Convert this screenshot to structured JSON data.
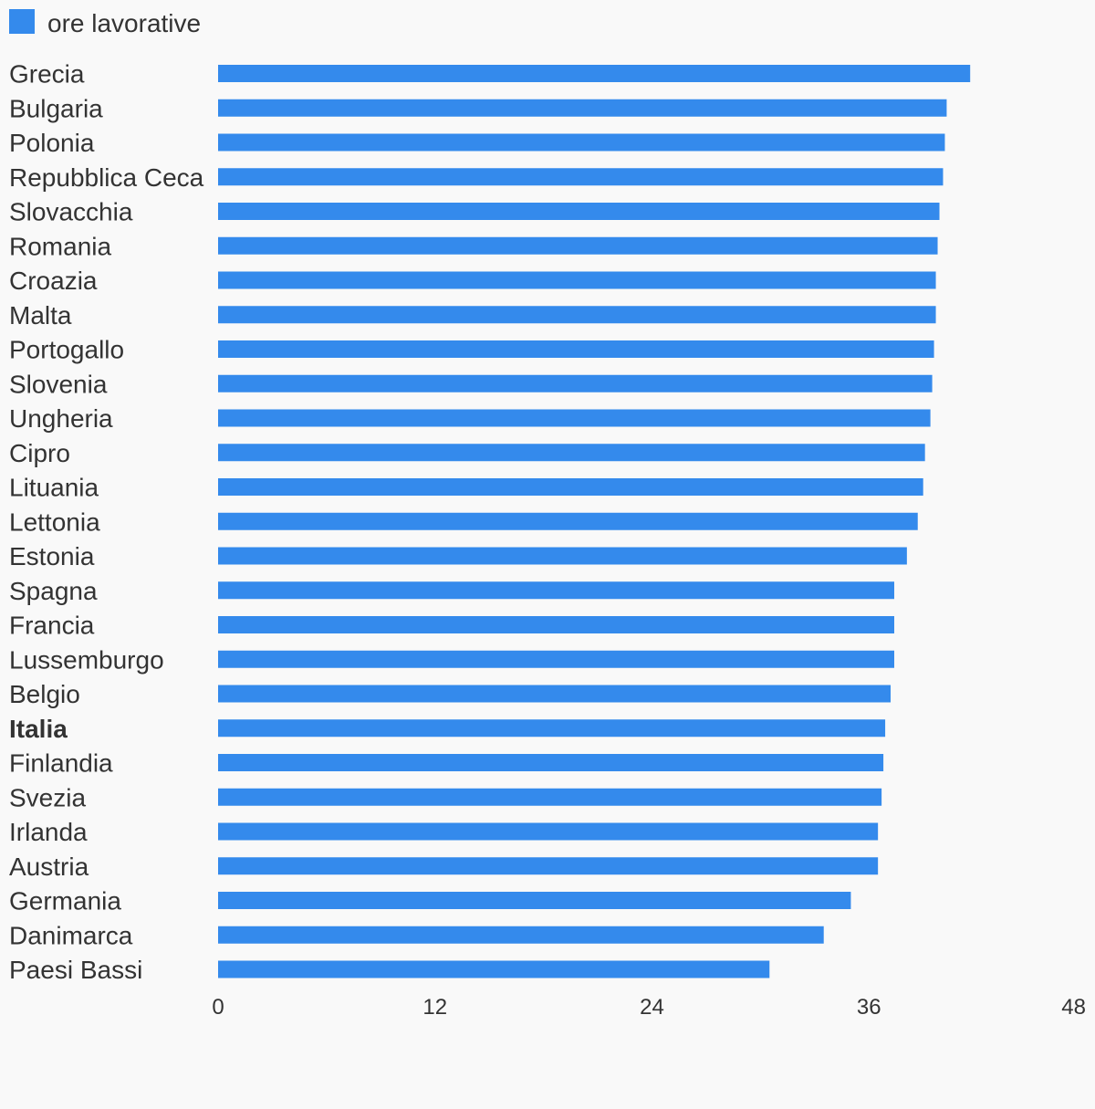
{
  "chart_data": {
    "type": "bar",
    "orientation": "horizontal",
    "legend": [
      {
        "label": "ore lavorative",
        "color": "#348AEC"
      }
    ],
    "series": [
      {
        "name": "ore lavorative",
        "color": "#348AEC"
      }
    ],
    "categories": [
      "Grecia",
      "Bulgaria",
      "Polonia",
      "Repubblica Ceca",
      "Slovacchia",
      "Romania",
      "Croazia",
      "Malta",
      "Portogallo",
      "Slovenia",
      "Ungheria",
      "Cipro",
      "Lituania",
      "Lettonia",
      "Estonia",
      "Spagna",
      "Francia",
      "Lussemburgo",
      "Belgio",
      "Italia",
      "Finlandia",
      "Svezia",
      "Irlanda",
      "Austria",
      "Germania",
      "Danimarca",
      "Paesi Bassi"
    ],
    "values": [
      41.6,
      40.3,
      40.2,
      40.1,
      39.9,
      39.8,
      39.7,
      39.7,
      39.6,
      39.5,
      39.4,
      39.1,
      39.0,
      38.7,
      38.1,
      37.4,
      37.4,
      37.4,
      37.2,
      36.9,
      36.8,
      36.7,
      36.5,
      36.5,
      35.0,
      33.5,
      30.5
    ],
    "highlighted_category": "Italia",
    "x_ticks": [
      "0",
      "12",
      "24",
      "36",
      "48"
    ],
    "xlim": [
      0,
      48
    ],
    "grid": false,
    "legend_position": "top-left",
    "title": "",
    "xlabel": "",
    "ylabel": ""
  }
}
